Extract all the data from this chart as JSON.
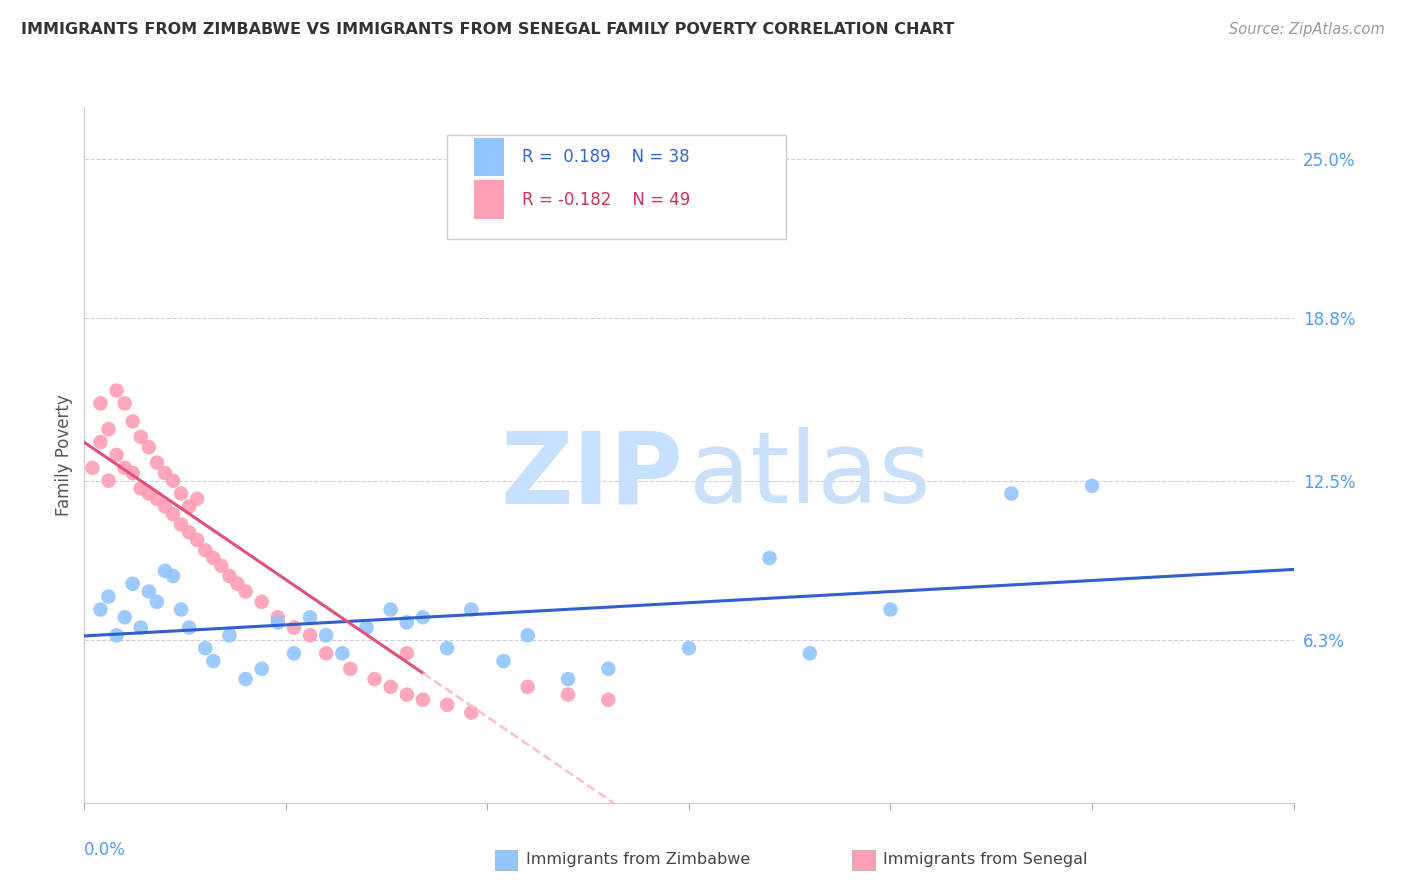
{
  "title": "IMMIGRANTS FROM ZIMBABWE VS IMMIGRANTS FROM SENEGAL FAMILY POVERTY CORRELATION CHART",
  "source": "Source: ZipAtlas.com",
  "ylabel": "Family Poverty",
  "ytick_labels": [
    "25.0%",
    "18.8%",
    "12.5%",
    "6.3%"
  ],
  "ytick_values": [
    0.25,
    0.188,
    0.125,
    0.063
  ],
  "xlim": [
    0.0,
    0.15
  ],
  "ylim": [
    0.0,
    0.27
  ],
  "color_zimbabwe": "#92C5FF",
  "color_senegal": "#FF9EB5",
  "line_color_zimbabwe": "#3060CC",
  "line_color_senegal_solid": "#E0507A",
  "line_color_senegal_dashed": "#F8C0CC",
  "watermark_zip_color": "#C8E0FF",
  "watermark_atlas_color": "#C8E0F8",
  "zimbabwe_x": [
    0.002,
    0.003,
    0.004,
    0.005,
    0.006,
    0.007,
    0.008,
    0.009,
    0.01,
    0.011,
    0.012,
    0.013,
    0.015,
    0.016,
    0.018,
    0.02,
    0.022,
    0.024,
    0.026,
    0.028,
    0.03,
    0.032,
    0.035,
    0.038,
    0.04,
    0.042,
    0.045,
    0.048,
    0.052,
    0.055,
    0.06,
    0.065,
    0.075,
    0.085,
    0.09,
    0.1,
    0.115,
    0.125
  ],
  "zimbabwe_y": [
    0.075,
    0.08,
    0.065,
    0.072,
    0.085,
    0.068,
    0.082,
    0.078,
    0.09,
    0.088,
    0.075,
    0.068,
    0.06,
    0.055,
    0.065,
    0.048,
    0.052,
    0.07,
    0.058,
    0.072,
    0.065,
    0.058,
    0.068,
    0.075,
    0.07,
    0.072,
    0.06,
    0.075,
    0.055,
    0.065,
    0.048,
    0.052,
    0.06,
    0.095,
    0.058,
    0.075,
    0.12,
    0.123
  ],
  "senegal_x": [
    0.001,
    0.002,
    0.002,
    0.003,
    0.003,
    0.004,
    0.004,
    0.005,
    0.005,
    0.006,
    0.006,
    0.007,
    0.007,
    0.008,
    0.008,
    0.009,
    0.009,
    0.01,
    0.01,
    0.011,
    0.011,
    0.012,
    0.012,
    0.013,
    0.013,
    0.014,
    0.014,
    0.015,
    0.016,
    0.017,
    0.018,
    0.019,
    0.02,
    0.022,
    0.024,
    0.026,
    0.028,
    0.03,
    0.033,
    0.036,
    0.038,
    0.04,
    0.042,
    0.045,
    0.048,
    0.055,
    0.06,
    0.065,
    0.04
  ],
  "senegal_y": [
    0.13,
    0.14,
    0.155,
    0.125,
    0.145,
    0.135,
    0.16,
    0.13,
    0.155,
    0.128,
    0.148,
    0.122,
    0.142,
    0.12,
    0.138,
    0.118,
    0.132,
    0.115,
    0.128,
    0.112,
    0.125,
    0.108,
    0.12,
    0.105,
    0.115,
    0.102,
    0.118,
    0.098,
    0.095,
    0.092,
    0.088,
    0.085,
    0.082,
    0.078,
    0.072,
    0.068,
    0.065,
    0.058,
    0.052,
    0.048,
    0.045,
    0.042,
    0.04,
    0.038,
    0.035,
    0.045,
    0.042,
    0.04,
    0.058
  ],
  "senegal_line_x_solid_start": 0.0,
  "senegal_line_x_solid_end": 0.042,
  "senegal_line_x_dashed_start": 0.042,
  "senegal_line_x_dashed_end": 0.15,
  "r_zimbabwe": 0.189,
  "n_zimbabwe": 38,
  "r_senegal": -0.182,
  "n_senegal": 49
}
